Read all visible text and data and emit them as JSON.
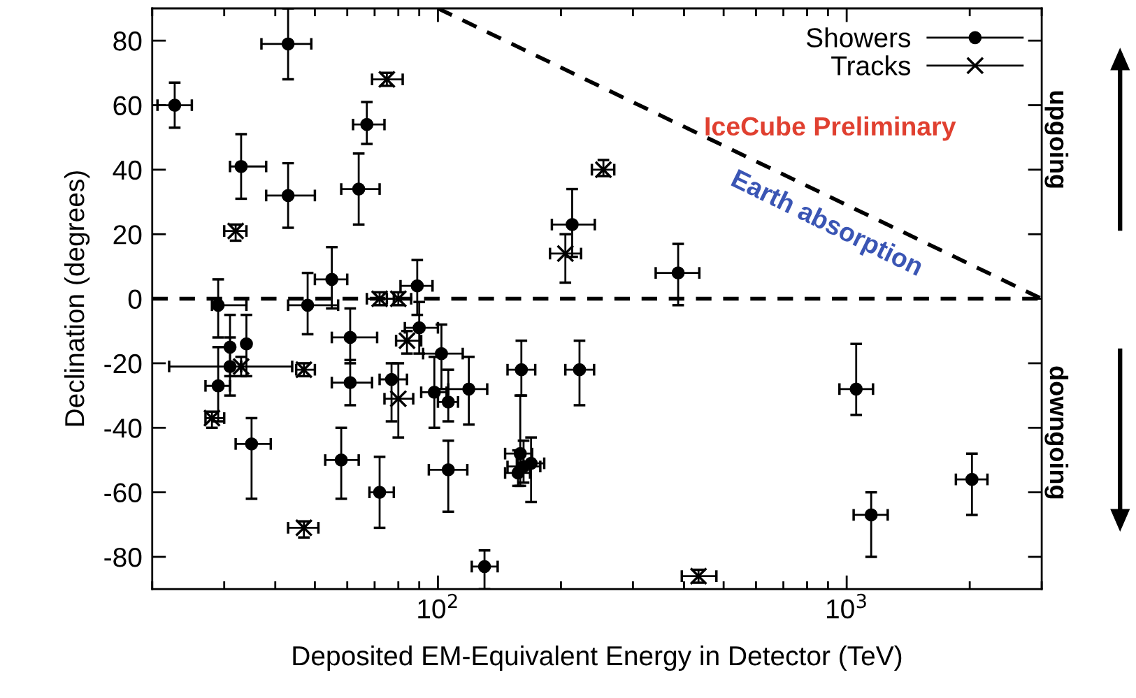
{
  "chart_data": {
    "type": "scatter",
    "xlabel": "Deposited EM-Equivalent Energy in Detector (TeV)",
    "ylabel": "Declination (degrees)",
    "log": "x",
    "xlim": [
      20,
      3000
    ],
    "xticks": [
      {
        "value": 100,
        "label": "10$^{2}$"
      },
      {
        "value": 1000,
        "label": "10$^{3}$"
      }
    ],
    "ylim": [
      -90,
      90
    ],
    "yticks": [
      -80,
      -60,
      -40,
      -20,
      0,
      20,
      40,
      60,
      80
    ],
    "grid": false,
    "legend": "top right",
    "series": [
      {
        "name": "Showers",
        "color": "#000000",
        "marker": "circle",
        "x": [
          22.7,
          43,
          33,
          43,
          67,
          64,
          213,
          387,
          55,
          89,
          48,
          29,
          61,
          90,
          102,
          31,
          34,
          61,
          77,
          98,
          119,
          106,
          160,
          222,
          1055,
          29,
          31,
          35,
          58,
          72,
          106,
          159,
          162,
          169,
          157,
          130,
          1148,
          2025
        ],
        "values": [
          60,
          79,
          41,
          32,
          54,
          34,
          23,
          8,
          6,
          4,
          -2,
          -2,
          -12,
          -9,
          -17,
          -15,
          -14,
          -26,
          -25,
          -29,
          -28,
          -32,
          -22,
          -22,
          -28,
          -27,
          -21,
          -45,
          -50,
          -60,
          -53,
          -48,
          -52,
          -51,
          -54,
          -83,
          -67,
          -56
        ],
        "xerrors": [
          [
            20.6,
            25
          ],
          [
            37,
            49
          ],
          [
            31,
            38
          ],
          [
            38,
            50
          ],
          [
            62,
            74
          ],
          [
            58,
            72
          ],
          [
            190,
            242
          ],
          [
            341,
            436
          ],
          [
            50,
            60
          ],
          [
            81,
            97
          ],
          [
            43,
            57
          ],
          [
            28,
            34
          ],
          [
            55,
            71
          ],
          [
            83,
            100
          ],
          [
            92,
            115
          ],
          null,
          null,
          [
            55,
            69
          ],
          [
            72,
            84
          ],
          [
            91,
            105
          ],
          [
            106,
            132
          ],
          [
            100,
            112
          ],
          [
            148,
            173
          ],
          [
            205,
            241
          ],
          [
            960,
            1160
          ],
          [
            27,
            31
          ],
          [
            22,
            44
          ],
          [
            32,
            39
          ],
          [
            53,
            64
          ],
          [
            68,
            78
          ],
          [
            95,
            118
          ],
          [
            146,
            170
          ],
          [
            148,
            178
          ],
          [
            156,
            182
          ],
          [
            146,
            168
          ],
          [
            121,
            140
          ],
          [
            1040,
            1260
          ],
          [
            1850,
            2210
          ]
        ],
        "errors": [
          [
            53,
            67
          ],
          [
            68,
            90
          ],
          [
            31,
            51
          ],
          [
            22,
            42
          ],
          [
            48,
            61
          ],
          [
            23,
            45
          ],
          [
            13,
            34
          ],
          [
            -2,
            17
          ],
          [
            -3,
            16
          ],
          [
            -5,
            12
          ],
          [
            -11,
            8
          ],
          [
            -12,
            6
          ],
          [
            -20,
            -3
          ],
          [
            -17,
            -1
          ],
          [
            -28,
            -8
          ],
          [
            -24,
            -5
          ],
          [
            -24,
            -5
          ],
          [
            -33,
            -19
          ],
          [
            -38,
            -20
          ],
          [
            -40,
            -18
          ],
          [
            -39,
            -18
          ],
          [
            -38,
            -22
          ],
          [
            -30,
            -13
          ],
          [
            -33,
            -13
          ],
          [
            -36,
            -14
          ],
          [
            -38,
            -15
          ],
          [
            -30,
            -12
          ],
          [
            -62,
            -37
          ],
          [
            -62,
            -40
          ],
          [
            -71,
            -49
          ],
          [
            -66,
            -44
          ],
          [
            -58,
            -30
          ],
          [
            -57,
            -44
          ],
          [
            -63,
            -43
          ],
          [
            -58,
            -47
          ],
          [
            -90,
            -78
          ],
          [
            -80,
            -60
          ],
          [
            -67,
            -48
          ]
        ]
      },
      {
        "name": "Tracks",
        "color": "#000000",
        "marker": "cross",
        "x": [
          75,
          32,
          254,
          205,
          72,
          80,
          84,
          80,
          47,
          33,
          28,
          47,
          434
        ],
        "values": [
          68,
          21,
          40,
          14,
          0,
          0,
          -13,
          -31,
          -22,
          -21,
          -37,
          -71,
          -86
        ],
        "xerrors": [
          [
            69,
            82
          ],
          [
            30,
            34
          ],
          [
            238,
            270
          ],
          [
            188,
            224
          ],
          [
            67,
            78
          ],
          [
            75,
            86
          ],
          [
            79,
            91
          ],
          [
            74,
            87
          ],
          [
            45,
            50
          ],
          null,
          [
            27,
            30
          ],
          [
            43,
            51
          ],
          [
            395,
            480
          ]
        ],
        "errors": [
          [
            66,
            70
          ],
          [
            18,
            23
          ],
          [
            38,
            43
          ],
          [
            5,
            20
          ],
          [
            -2,
            2
          ],
          [
            -2,
            2
          ],
          [
            -17,
            -10
          ],
          [
            -43,
            -20
          ],
          [
            -24,
            -20
          ],
          [
            -24,
            -18
          ],
          [
            -40,
            -35
          ],
          [
            -74,
            -69
          ],
          [
            -88,
            -84
          ]
        ]
      },
      {
        "type": "line",
        "color": "#000000",
        "line_style": "dashed",
        "marker": "none",
        "x": [
          100,
          3000
        ],
        "values": [
          90,
          0
        ]
      }
    ],
    "ref_lines": [
      {
        "axis": "y",
        "value": 0,
        "color": "#000000",
        "line_style": "dashed"
      }
    ],
    "annotations": [
      "IceCube Preliminary",
      "Earth absorption",
      "upgoing",
      "downgoing"
    ]
  }
}
